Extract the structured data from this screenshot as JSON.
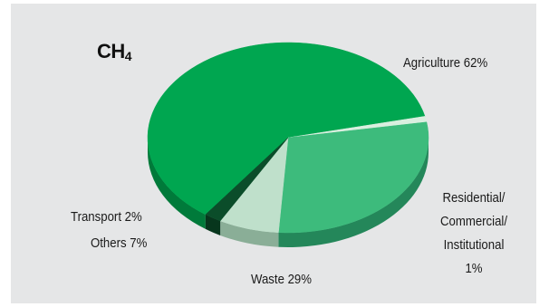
{
  "chart_data": {
    "type": "pie",
    "style": "3d",
    "title": "CH",
    "title_sub": "4",
    "slices": [
      {
        "label": "Agriculture",
        "value": 62,
        "text": "Agriculture 62%",
        "color": "#00a650",
        "side": "#007a3a"
      },
      {
        "label": "Residential/ Commercial/ Institutional",
        "value": 1,
        "lines": [
          "Residential/",
          "Commercial/",
          "Institutional",
          "1%"
        ],
        "color": "#d9efdf",
        "side": "#a9c9b2"
      },
      {
        "label": "Waste",
        "value": 29,
        "text": "Waste  29%",
        "color": "#3dbb7c",
        "side": "#24875a"
      },
      {
        "label": "Others",
        "value": 7,
        "text": "Others 7%",
        "color": "#bfe0cb",
        "side": "#8aae97"
      },
      {
        "label": "Transport",
        "value": 2,
        "text": "Transport 2%",
        "color": "#0b4d2a",
        "side": "#07361d"
      }
    ],
    "background": "#e5e6e7"
  }
}
